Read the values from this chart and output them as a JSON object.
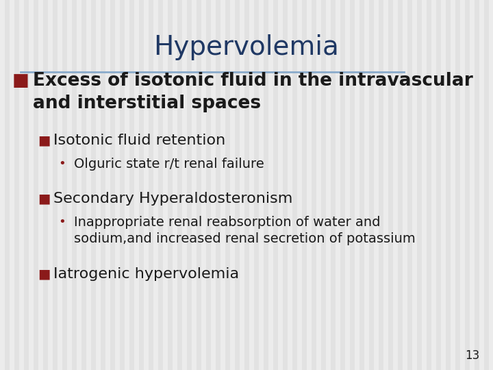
{
  "title": "Hypervolemia",
  "title_color": "#1F3864",
  "title_fontsize": 28,
  "background_color": "#E8E8E8",
  "stripe_light": "#EFEFEF",
  "stripe_dark": "#DEDEDE",
  "divider_color": "#8AABCB",
  "bullet_color": "#8B1A1A",
  "text_color": "#1a1a1a",
  "page_number": "13",
  "content": [
    {
      "level": 0,
      "text": "Excess of isotonic fluid in the intravascular\nand interstitial spaces",
      "fontsize": 19,
      "bold": true
    },
    {
      "level": 1,
      "text": "Isotonic fluid retention",
      "fontsize": 16,
      "bold": false
    },
    {
      "level": 2,
      "text": "Olguric state r/t renal failure",
      "fontsize": 14,
      "bold": false
    },
    {
      "level": 1,
      "text": "Secondary Hyperaldosteronism",
      "fontsize": 16,
      "bold": false
    },
    {
      "level": 2,
      "text": "Inappropriate renal reabsorption of water and\nsodium,and increased renal secretion of potassium",
      "fontsize": 14,
      "bold": false
    },
    {
      "level": 1,
      "text": "Iatrogenic hypervolemia",
      "fontsize": 16,
      "bold": false
    }
  ]
}
